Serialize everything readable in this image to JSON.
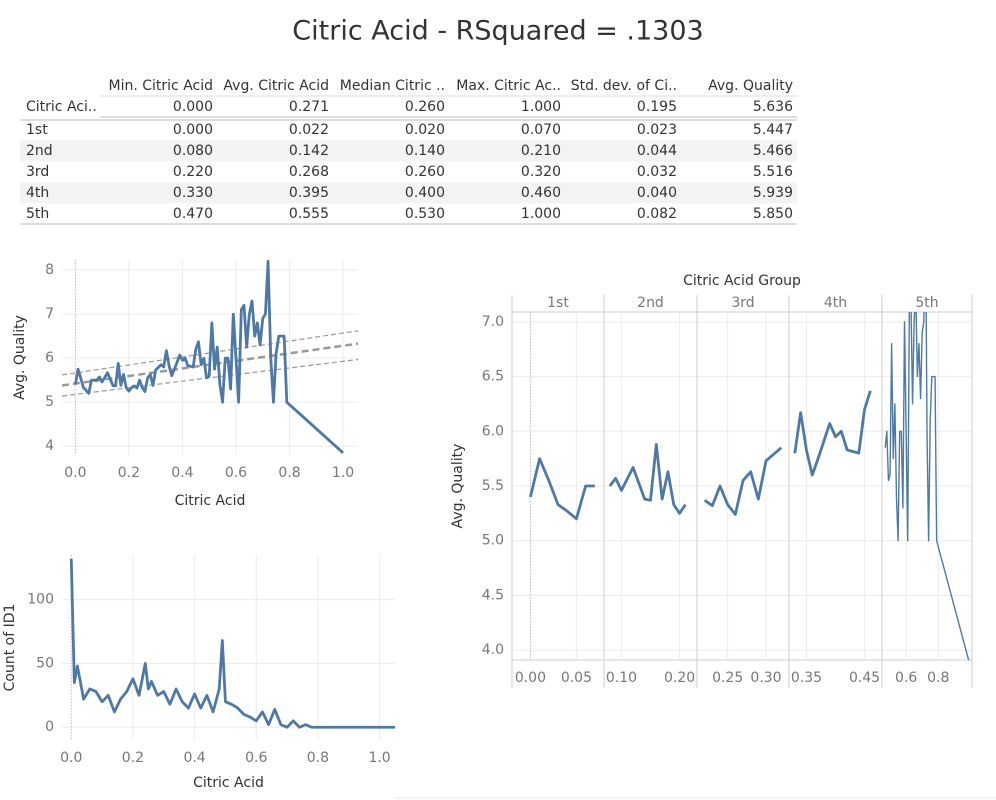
{
  "title": "Citric Acid - RSquared = .1303",
  "table": {
    "columns": [
      "Min. Citric Acid",
      "Avg. Citric Acid",
      "Median Citric ..",
      "Max. Citric Ac..",
      "Std. dev. of Ci..",
      "Avg. Quality"
    ],
    "rows": [
      [
        "Citric Aci..",
        "0.000",
        "0.271",
        "0.260",
        "1.000",
        "0.195",
        "5.636"
      ],
      [
        "1st",
        "0.000",
        "0.022",
        "0.020",
        "0.070",
        "0.023",
        "5.447"
      ],
      [
        "2nd",
        "0.080",
        "0.142",
        "0.140",
        "0.210",
        "0.044",
        "5.466"
      ],
      [
        "3rd",
        "0.220",
        "0.268",
        "0.260",
        "0.320",
        "0.032",
        "5.516"
      ],
      [
        "4th",
        "0.330",
        "0.395",
        "0.400",
        "0.460",
        "0.040",
        "5.939"
      ],
      [
        "5th",
        "0.470",
        "0.555",
        "0.530",
        "1.000",
        "0.082",
        "5.850"
      ]
    ]
  },
  "chart_data": [
    {
      "type": "line",
      "x_label": "Citric Acid",
      "y_label": "Avg. Quality",
      "color": "#4e79a7",
      "grid": true,
      "xlim": [
        -0.05,
        1.056
      ],
      "ylim": [
        3.8,
        8.23
      ],
      "xticks": [
        {
          "value": 0,
          "label": "0.0"
        },
        {
          "value": 0.2,
          "label": "0.2"
        },
        {
          "value": 0.4,
          "label": "0.4"
        },
        {
          "value": 0.6,
          "label": "0.6"
        },
        {
          "value": 0.8,
          "label": "0.8"
        },
        {
          "value": 1,
          "label": "1.0"
        }
      ],
      "yticks": [
        4,
        5,
        6,
        7,
        8
      ],
      "x": [
        0,
        0.01,
        0.02,
        0.03,
        0.04,
        0.05,
        0.06,
        0.07,
        0.08,
        0.09,
        0.1,
        0.12,
        0.14,
        0.15,
        0.16,
        0.17,
        0.18,
        0.19,
        0.2,
        0.21,
        0.22,
        0.23,
        0.24,
        0.25,
        0.26,
        0.27,
        0.28,
        0.29,
        0.3,
        0.32,
        0.33,
        0.34,
        0.35,
        0.36,
        0.37,
        0.39,
        0.4,
        0.41,
        0.42,
        0.44,
        0.45,
        0.46,
        0.47,
        0.48,
        0.49,
        0.5,
        0.51,
        0.52,
        0.53,
        0.54,
        0.55,
        0.56,
        0.57,
        0.58,
        0.59,
        0.6,
        0.61,
        0.62,
        0.63,
        0.64,
        0.65,
        0.66,
        0.67,
        0.68,
        0.69,
        0.7,
        0.71,
        0.72,
        0.73,
        0.74,
        0.75,
        0.76,
        0.78,
        0.79,
        1.0
      ],
      "values": [
        5.4,
        5.75,
        5.55,
        5.33,
        5.27,
        5.2,
        5.5,
        5.5,
        5.5,
        5.57,
        5.46,
        5.67,
        5.38,
        5.37,
        5.88,
        5.38,
        5.63,
        5.33,
        5.25,
        5.33,
        5.37,
        5.32,
        5.5,
        5.33,
        5.24,
        5.55,
        5.63,
        5.38,
        5.73,
        5.85,
        5.8,
        6.17,
        5.83,
        5.6,
        5.75,
        6.07,
        5.95,
        6.0,
        5.83,
        5.8,
        6.2,
        6.37,
        5.85,
        6.0,
        5.55,
        5.6,
        6.8,
        5.75,
        6.25,
        5.4,
        5.0,
        6.0,
        6.0,
        5.3,
        7.0,
        6.0,
        5.0,
        7.1,
        7.2,
        6.25,
        7.0,
        7.3,
        6.5,
        6.8,
        6.3,
        6.9,
        7.0,
        8.2,
        6.0,
        5.0,
        6.1,
        6.5,
        6.5,
        5.0,
        3.85
      ],
      "trend_lines": [
        {
          "x": [
            -0.05,
            1.056
          ],
          "values": [
            5.38,
            6.33
          ]
        },
        {
          "x": [
            -0.05,
            1.056
          ],
          "values": [
            5.62,
            6.62
          ]
        },
        {
          "x": [
            -0.05,
            1.056
          ],
          "values": [
            5.14,
            5.97
          ]
        }
      ]
    },
    {
      "type": "line",
      "x_label": "Citric Acid",
      "y_label": "Count of ID1",
      "color": "#4e79a7",
      "grid": true,
      "xlim": [
        -0.03,
        1.05
      ],
      "ylim": [
        -10,
        135
      ],
      "xticks": [
        {
          "value": 0,
          "label": "0.0"
        },
        {
          "value": 0.2,
          "label": "0.2"
        },
        {
          "value": 0.4,
          "label": "0.4"
        },
        {
          "value": 0.6,
          "label": "0.6"
        },
        {
          "value": 0.8,
          "label": "0.8"
        },
        {
          "value": 1,
          "label": "1.0"
        }
      ],
      "yticks": [
        0,
        50,
        100
      ],
      "x": [
        0,
        0.01,
        0.02,
        0.04,
        0.06,
        0.08,
        0.1,
        0.12,
        0.14,
        0.16,
        0.18,
        0.2,
        0.22,
        0.24,
        0.25,
        0.26,
        0.28,
        0.3,
        0.32,
        0.34,
        0.36,
        0.38,
        0.4,
        0.42,
        0.44,
        0.46,
        0.48,
        0.49,
        0.5,
        0.52,
        0.54,
        0.56,
        0.58,
        0.6,
        0.62,
        0.64,
        0.66,
        0.68,
        0.7,
        0.72,
        0.74,
        0.76,
        0.78,
        0.8,
        0.9,
        1.05
      ],
      "values": [
        132,
        35,
        48,
        22,
        30,
        28,
        20,
        25,
        12,
        22,
        28,
        38,
        25,
        50,
        30,
        36,
        25,
        28,
        18,
        30,
        20,
        15,
        26,
        15,
        25,
        12,
        30,
        68,
        20,
        18,
        15,
        10,
        8,
        5,
        12,
        2,
        14,
        2,
        0,
        5,
        0,
        2,
        0,
        0,
        0,
        0
      ]
    },
    {
      "type": "faceted_line",
      "title": "Citric Acid Group",
      "y_label": "Avg. Quality",
      "color": "#4e79a7",
      "grid": true,
      "ylim": [
        3.91,
        7.09
      ],
      "yticks": [
        {
          "value": 4,
          "label": "4.0"
        },
        {
          "value": 4.5,
          "label": "4.5"
        },
        {
          "value": 5,
          "label": "5.0"
        },
        {
          "value": 5.5,
          "label": "5.5"
        },
        {
          "value": 6,
          "label": "6.0"
        },
        {
          "value": 6.5,
          "label": "6.5"
        },
        {
          "value": 7,
          "label": "7.0"
        }
      ],
      "facets": [
        {
          "name": "1st",
          "xlim": [
            -0.02,
            0.08
          ],
          "xticks": [
            {
              "value": 0,
              "label": "0.00"
            },
            {
              "value": 0.05,
              "label": "0.05"
            }
          ],
          "x": [
            0,
            0.01,
            0.02,
            0.03,
            0.04,
            0.05,
            0.06,
            0.07
          ],
          "values": [
            5.4,
            5.75,
            5.55,
            5.33,
            5.27,
            5.2,
            5.5,
            5.5
          ]
        },
        {
          "name": "2nd",
          "xlim": [
            0.07,
            0.23
          ],
          "xticks": [
            {
              "value": 0.1,
              "label": "0.10"
            },
            {
              "value": 0.2,
              "label": "0.20"
            }
          ],
          "x": [
            0.08,
            0.09,
            0.1,
            0.12,
            0.14,
            0.15,
            0.16,
            0.17,
            0.18,
            0.19,
            0.2,
            0.21
          ],
          "values": [
            5.5,
            5.57,
            5.46,
            5.67,
            5.38,
            5.37,
            5.88,
            5.38,
            5.63,
            5.33,
            5.25,
            5.33
          ]
        },
        {
          "name": "3rd",
          "xlim": [
            0.21,
            0.33
          ],
          "xticks": [
            {
              "value": 0.25,
              "label": "0.25"
            },
            {
              "value": 0.3,
              "label": "0.30"
            }
          ],
          "x": [
            0.22,
            0.23,
            0.24,
            0.25,
            0.26,
            0.27,
            0.28,
            0.29,
            0.3,
            0.32
          ],
          "values": [
            5.37,
            5.32,
            5.5,
            5.33,
            5.24,
            5.55,
            5.63,
            5.38,
            5.73,
            5.85
          ]
        },
        {
          "name": "4th",
          "xlim": [
            0.32,
            0.48
          ],
          "xticks": [
            0.35,
            0.45
          ],
          "x": [
            0.33,
            0.34,
            0.35,
            0.36,
            0.37,
            0.39,
            0.4,
            0.41,
            0.42,
            0.44,
            0.45,
            0.46
          ],
          "values": [
            5.8,
            6.17,
            5.83,
            5.6,
            5.75,
            6.07,
            5.95,
            6.0,
            5.83,
            5.8,
            6.2,
            6.37
          ]
        },
        {
          "name": "5th",
          "xlim": [
            0.45,
            1.01
          ],
          "xticks": [
            0.6,
            0.8
          ],
          "x": [
            0.47,
            0.48,
            0.49,
            0.5,
            0.51,
            0.52,
            0.53,
            0.54,
            0.55,
            0.56,
            0.57,
            0.58,
            0.59,
            0.6,
            0.61,
            0.62,
            0.63,
            0.64,
            0.65,
            0.66,
            0.67,
            0.68,
            0.69,
            0.7,
            0.71,
            0.72,
            0.73,
            0.74,
            0.75,
            0.76,
            0.78,
            0.79,
            1.0
          ],
          "values": [
            5.85,
            6.0,
            5.55,
            5.6,
            6.8,
            5.75,
            6.25,
            5.4,
            5.0,
            6.0,
            6.0,
            5.3,
            7.0,
            6.0,
            5.0,
            7.1,
            7.2,
            6.25,
            7.0,
            7.3,
            6.5,
            6.8,
            6.3,
            6.9,
            7.0,
            8.2,
            6.0,
            5.0,
            6.1,
            6.5,
            6.5,
            5.0,
            3.85
          ]
        }
      ]
    }
  ]
}
